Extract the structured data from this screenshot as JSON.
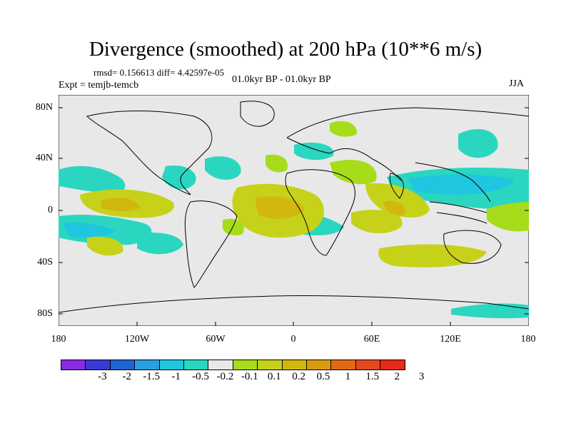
{
  "title": "Divergence (smoothed) at 200 hPa (10**6 m/s)",
  "stats": "rmsd= 0.156613 diff= 4.42597e-05",
  "experiment": "Expt = temjb-temcb",
  "period": "01.0kyr BP - 01.0kyr BP",
  "season": "JJA",
  "y_axis_labels": [
    "80N",
    "40N",
    "0",
    "40S",
    "80S"
  ],
  "x_axis_labels": [
    "180",
    "120W",
    "60W",
    "0",
    "60E",
    "120E",
    "180"
  ],
  "colorbar": {
    "colors": [
      "#8a2be2",
      "#3a3ad6",
      "#1f64d2",
      "#2aa0e0",
      "#1ec6e0",
      "#2bd6c0",
      "#e8e8e8",
      "#a6dc1a",
      "#c6d21a",
      "#d2b80e",
      "#dc9a0e",
      "#e06a14",
      "#e5481e",
      "#e82a18"
    ],
    "labels": [
      "-3",
      "-2",
      "-1.5",
      "-1",
      "-0.5",
      "-0.2",
      "-0.1",
      "0.1",
      "0.2",
      "0.5",
      "1",
      "1.5",
      "2",
      "3"
    ]
  },
  "colors": {
    "background": "#e8e8e8",
    "coastline": "#000000"
  }
}
